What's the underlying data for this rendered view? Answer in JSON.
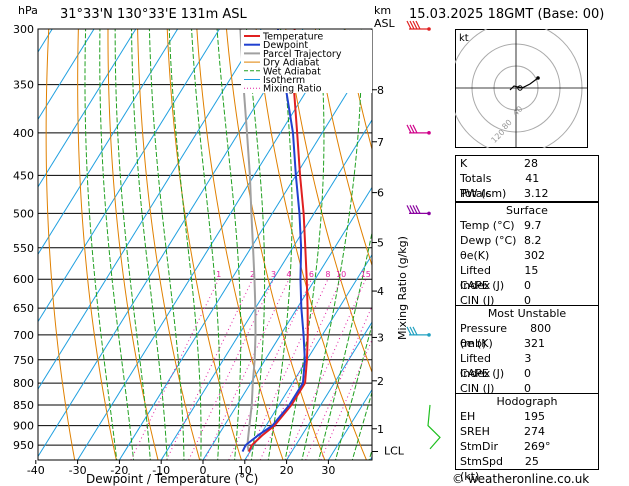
{
  "header": {
    "location": "31°33'N  130°33'E  131m  ASL",
    "datetime": "15.03.2025  18GMT  (Base: 00)"
  },
  "axes": {
    "hpa_label": "hPa",
    "km_label": "km",
    "asl_label": "ASL",
    "xlabel": "Dewpoint / Temperature (°C)",
    "mixing_label": "Mixing Ratio (g/kg)",
    "lcl_label": "LCL"
  },
  "legend": [
    "Temperature",
    "Dewpoint",
    "Parcel Trajectory",
    "Dry Adiabat",
    "Wet Adiabat",
    "Isotherm",
    "Mixing Ratio"
  ],
  "colors": {
    "temperature": "#e02020",
    "dewpoint": "#2040d0",
    "parcel": "#a0a0a0",
    "dry_adiabat": "#e08000",
    "wet_adiabat": "#20a020",
    "isotherm": "#20a0e0",
    "mixing": "#e020a0"
  },
  "chart_data": {
    "type": "line",
    "title": "",
    "pressure_ticks": [
      300,
      350,
      400,
      450,
      500,
      550,
      600,
      650,
      700,
      750,
      800,
      850,
      900,
      950
    ],
    "temperature_ticks": [
      -40,
      -30,
      -20,
      -10,
      0,
      10,
      20,
      30
    ],
    "km_ticks": [
      {
        "km": "1",
        "p": 908
      },
      {
        "km": "2",
        "p": 795
      },
      {
        "km": "3",
        "p": 705
      },
      {
        "km": "4",
        "p": 620
      },
      {
        "km": "5",
        "p": 542
      },
      {
        "km": "6",
        "p": 472
      },
      {
        "km": "7",
        "p": 410
      },
      {
        "km": "8",
        "p": 355
      }
    ],
    "mixing_ratio_labels": [
      "1",
      "2",
      "3",
      "4",
      "6",
      "8",
      "10",
      "15",
      "20",
      "25"
    ],
    "mixing_ratio_values": [
      1,
      2,
      3,
      4,
      6,
      8,
      10,
      15,
      20,
      25
    ],
    "temperature": [
      {
        "p": 967,
        "t": 9.7
      },
      {
        "p": 950,
        "t": 9.5
      },
      {
        "p": 925,
        "t": 10.5
      },
      {
        "p": 900,
        "t": 12
      },
      {
        "p": 850,
        "t": 13
      },
      {
        "p": 800,
        "t": 13
      },
      {
        "p": 750,
        "t": 10
      },
      {
        "p": 700,
        "t": 6.5
      },
      {
        "p": 650,
        "t": 2.5
      },
      {
        "p": 600,
        "t": -2
      },
      {
        "p": 550,
        "t": -7
      },
      {
        "p": 500,
        "t": -12.5
      },
      {
        "p": 450,
        "t": -19
      },
      {
        "p": 400,
        "t": -26
      },
      {
        "p": 350,
        "t": -34
      },
      {
        "p": 300,
        "t": -42
      }
    ],
    "dewpoint": [
      {
        "p": 967,
        "t": 8.2
      },
      {
        "p": 950,
        "t": 8
      },
      {
        "p": 925,
        "t": 9.5
      },
      {
        "p": 900,
        "t": 11.5
      },
      {
        "p": 850,
        "t": 12.5
      },
      {
        "p": 800,
        "t": 12.5
      },
      {
        "p": 750,
        "t": 9.5
      },
      {
        "p": 700,
        "t": 5.5
      },
      {
        "p": 650,
        "t": 1
      },
      {
        "p": 600,
        "t": -3.5
      },
      {
        "p": 550,
        "t": -8
      },
      {
        "p": 500,
        "t": -13.5
      },
      {
        "p": 450,
        "t": -20
      },
      {
        "p": 400,
        "t": -27
      },
      {
        "p": 350,
        "t": -36
      },
      {
        "p": 300,
        "t": -46
      }
    ],
    "parcel": [
      {
        "p": 967,
        "t": 9.7
      },
      {
        "p": 950,
        "t": 8.4
      },
      {
        "p": 900,
        "t": 6
      },
      {
        "p": 850,
        "t": 3.5
      },
      {
        "p": 800,
        "t": 0.5
      },
      {
        "p": 750,
        "t": -2.5
      },
      {
        "p": 700,
        "t": -6
      },
      {
        "p": 650,
        "t": -10
      },
      {
        "p": 600,
        "t": -14.5
      },
      {
        "p": 550,
        "t": -19.5
      },
      {
        "p": 500,
        "t": -25
      },
      {
        "p": 450,
        "t": -31
      },
      {
        "p": 400,
        "t": -38
      },
      {
        "p": 350,
        "t": -46
      },
      {
        "p": 300,
        "t": -55
      }
    ]
  },
  "hodograph": {
    "label": "kt",
    "rings": [
      "40",
      "80",
      "120"
    ]
  },
  "indices": [
    {
      "k": "K",
      "v": "28"
    },
    {
      "k": "Totals Totals",
      "v": "41"
    },
    {
      "k": "PW (cm)",
      "v": "3.12"
    }
  ],
  "surface": {
    "title": "Surface",
    "rows": [
      {
        "k": "Temp (°C)",
        "v": "9.7"
      },
      {
        "k": "Dewp (°C)",
        "v": "8.2"
      },
      {
        "k": "θe(K)",
        "v": "302"
      },
      {
        "k": "Lifted Index",
        "v": "15"
      },
      {
        "k": "CAPE (J)",
        "v": "0"
      },
      {
        "k": "CIN (J)",
        "v": "0"
      }
    ]
  },
  "most_unstable": {
    "title": "Most Unstable",
    "rows": [
      {
        "k": "Pressure (mb)",
        "v": "800"
      },
      {
        "k": "θe (K)",
        "v": "321"
      },
      {
        "k": "Lifted Index",
        "v": "3"
      },
      {
        "k": "CAPE (J)",
        "v": "0"
      },
      {
        "k": "CIN (J)",
        "v": "0"
      }
    ]
  },
  "hodo_table": {
    "title": "Hodograph",
    "rows": [
      {
        "k": "EH",
        "v": "195"
      },
      {
        "k": "SREH",
        "v": "274"
      },
      {
        "k": "StmDir",
        "v": "269°"
      },
      {
        "k": "StmSpd (kt)",
        "v": "25"
      }
    ]
  },
  "copyright": "© weatheronline.co.uk"
}
